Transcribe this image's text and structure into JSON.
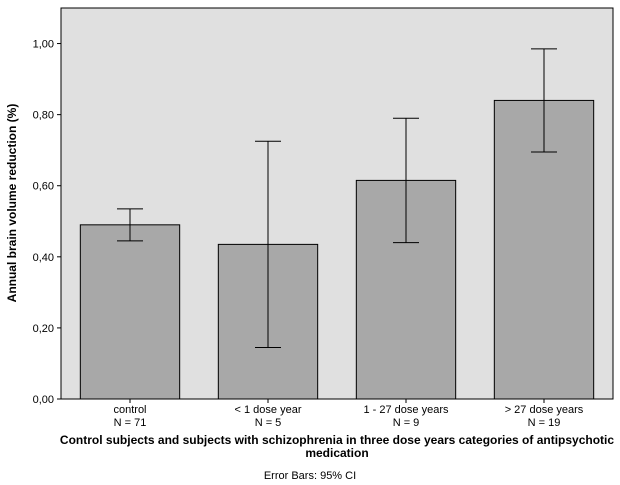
{
  "chart_data": {
    "type": "bar",
    "categories": [
      {
        "name": "control",
        "n": "N = 71"
      },
      {
        "name": "< 1 dose year",
        "n": "N = 5"
      },
      {
        "name": "1 - 27 dose years",
        "n": "N = 9"
      },
      {
        "name": "> 27 dose years",
        "n": "N = 19"
      }
    ],
    "values": [
      0.49,
      0.435,
      0.615,
      0.84
    ],
    "ci_lower": [
      0.445,
      0.145,
      0.44,
      0.695
    ],
    "ci_upper": [
      0.535,
      0.725,
      0.79,
      0.985
    ],
    "ylim": [
      0,
      1.1
    ],
    "yticks": [
      {
        "value": 0,
        "label": "0,00"
      },
      {
        "value": 0.2,
        "label": "0,20"
      },
      {
        "value": 0.4,
        "label": "0,40"
      },
      {
        "value": 0.6,
        "label": "0,60"
      },
      {
        "value": 0.8,
        "label": "0,80"
      },
      {
        "value": 1.0,
        "label": "1,00"
      }
    ],
    "ylabel": "Annual brain volume reduction (%)",
    "xlabel_line1": "Control subjects and subjects with schizophrenia in three dose years categories of antipsychotic",
    "xlabel_line2": "medication",
    "footnote": "Error Bars: 95% CI",
    "grid": false,
    "colors": {
      "plot_background": "#e0e0e0",
      "bar_fill": "#a8a8a8",
      "bar_stroke": "#000000"
    }
  }
}
